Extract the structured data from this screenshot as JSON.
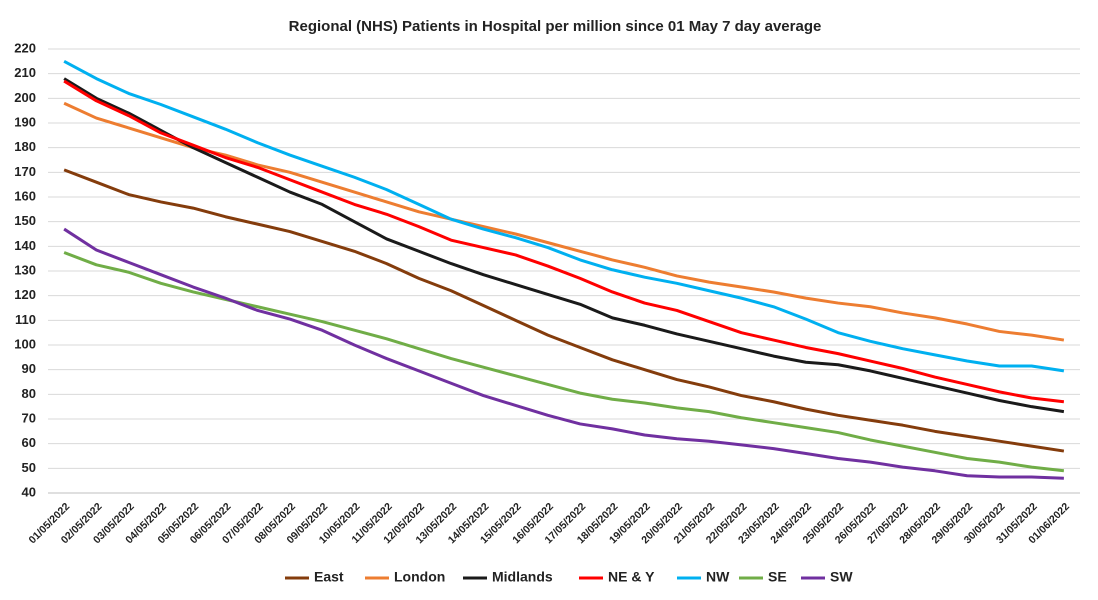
{
  "chart_data": {
    "type": "line",
    "title": "Regional (NHS) Patients in Hospital per million since 01 May 7 day average",
    "categories": [
      "01/05/2022",
      "02/05/2022",
      "03/05/2022",
      "04/05/2022",
      "05/05/2022",
      "06/05/2022",
      "07/05/2022",
      "08/05/2022",
      "09/05/2022",
      "10/05/2022",
      "11/05/2022",
      "12/05/2022",
      "13/05/2022",
      "14/05/2022",
      "15/05/2022",
      "16/05/2022",
      "17/05/2022",
      "18/05/2022",
      "19/05/2022",
      "20/05/2022",
      "21/05/2022",
      "22/05/2022",
      "23/05/2022",
      "24/05/2022",
      "25/05/2022",
      "26/05/2022",
      "27/05/2022",
      "28/05/2022",
      "29/05/2022",
      "30/05/2022",
      "31/05/2022",
      "01/06/2022"
    ],
    "series": [
      {
        "name": "East",
        "color": "#843C0C",
        "values": [
          171,
          166,
          161,
          158,
          155.5,
          152,
          149,
          146,
          142,
          138,
          133,
          127,
          122,
          116,
          110,
          104,
          99,
          94,
          90,
          86,
          83,
          79.5,
          77,
          74,
          71.5,
          69.5,
          67.5,
          65,
          63,
          61,
          59,
          57
        ]
      },
      {
        "name": "London",
        "color": "#ED7D31",
        "values": [
          198,
          192,
          188,
          184,
          180,
          177,
          173,
          170,
          166,
          162,
          158,
          154,
          151,
          148,
          145,
          141.5,
          138,
          134.5,
          131.5,
          128,
          125.5,
          123.5,
          121.5,
          119,
          117,
          115.5,
          113,
          111,
          108.5,
          105.5,
          104,
          102
        ]
      },
      {
        "name": "Midlands",
        "color": "#1a1a1a",
        "values": [
          208,
          200,
          194,
          187,
          180,
          174,
          168,
          162,
          157,
          150,
          143,
          138,
          133,
          128.5,
          124.5,
          120.5,
          116.5,
          111,
          108,
          104.5,
          101.5,
          98.5,
          95.5,
          93,
          92,
          89.5,
          86.5,
          83.5,
          80.5,
          77.5,
          75,
          73
        ]
      },
      {
        "name": "NE & Y",
        "color": "#FF0000",
        "values": [
          207,
          199,
          193,
          186,
          181,
          176,
          172,
          167,
          162,
          157,
          153,
          148,
          142.5,
          139.5,
          136.5,
          132,
          127,
          121.5,
          117,
          114,
          109.5,
          105,
          102,
          99,
          96.5,
          93.5,
          90.5,
          87,
          84,
          81,
          78.5,
          77
        ]
      },
      {
        "name": "NW",
        "color": "#00B0F0",
        "values": [
          215,
          208,
          202,
          197.5,
          192.5,
          187.5,
          182,
          177,
          172.5,
          168,
          163,
          157,
          151,
          147,
          143.5,
          139.5,
          134.5,
          130.5,
          127.5,
          125,
          122,
          119,
          115.5,
          110.5,
          105,
          101.5,
          98.5,
          96,
          93.5,
          91.5,
          91.5,
          89.5
        ]
      },
      {
        "name": "SE",
        "color": "#70AD47",
        "values": [
          137.5,
          132.5,
          129.5,
          125,
          121.5,
          118.5,
          115.5,
          112.5,
          109.5,
          106,
          102.5,
          98.5,
          94.5,
          91,
          87.5,
          84,
          80.5,
          78,
          76.5,
          74.5,
          73,
          70.5,
          68.5,
          66.5,
          64.5,
          61.5,
          59,
          56.5,
          54,
          52.5,
          50.5,
          49
        ]
      },
      {
        "name": "SW",
        "color": "#7030A0",
        "values": [
          147,
          138.5,
          133.5,
          128.5,
          123.5,
          119,
          114,
          110.5,
          106,
          100,
          94.5,
          89.5,
          84.5,
          79.5,
          75.5,
          71.5,
          68,
          66,
          63.5,
          62,
          61,
          59.5,
          58,
          56,
          54,
          52.5,
          50.5,
          49,
          47,
          46.5,
          46.5,
          46
        ]
      }
    ],
    "ylim": [
      40,
      220
    ],
    "yticks": [
      40,
      50,
      60,
      70,
      80,
      90,
      100,
      110,
      120,
      130,
      140,
      150,
      160,
      170,
      180,
      190,
      200,
      210,
      220
    ],
    "grid": true,
    "legend": "bottom"
  }
}
